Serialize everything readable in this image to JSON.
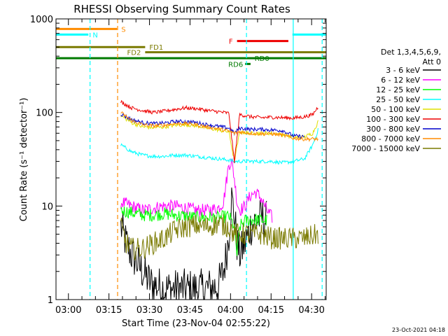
{
  "chart_data": {
    "type": "line",
    "title": "RHESSI Observing Summary Count Rates",
    "xlabel": "Start Time (23-Nov-04 02:55:22)",
    "ylabel": "Count Rate (s⁻¹ detector⁻¹)",
    "yscale": "log",
    "ylim": [
      1,
      1000
    ],
    "x_units": "minutes after 02:55:22",
    "xlim": [
      0,
      100
    ],
    "x_ticks": [
      {
        "label": "03:00",
        "value": 4.6
      },
      {
        "label": "03:15",
        "value": 19.6
      },
      {
        "label": "03:30",
        "value": 34.6
      },
      {
        "label": "03:45",
        "value": 49.6
      },
      {
        "label": "04:00",
        "value": 64.6
      },
      {
        "label": "04:15",
        "value": 79.6
      },
      {
        "label": "04:30",
        "value": 94.6
      }
    ],
    "y_ticks": [
      {
        "label": "1",
        "value": 1
      },
      {
        "label": "10",
        "value": 10
      },
      {
        "label": "100",
        "value": 100
      },
      {
        "label": "1000",
        "value": 1000
      }
    ],
    "legend": {
      "position": "right",
      "header": [
        "Det 1,3,4,5,6,9,",
        "Att 0"
      ],
      "entries": [
        {
          "label": "3 - 6 keV",
          "color": "#000000"
        },
        {
          "label": "6 - 12 keV",
          "color": "#ff00ff"
        },
        {
          "label": "12 - 25 keV",
          "color": "#00ff00"
        },
        {
          "label": "25 - 50 keV",
          "color": "#00ffff"
        },
        {
          "label": "50 - 100 keV",
          "color": "#e0e000"
        },
        {
          "label": "100 - 300 keV",
          "color": "#ee0000"
        },
        {
          "label": "300 - 800 keV",
          "color": "#0000cc"
        },
        {
          "label": "800 - 7000 keV",
          "color": "#ff8c00"
        },
        {
          "label": "7000 - 15000 keV",
          "color": "#7a7a00"
        }
      ]
    },
    "series": [
      {
        "name": "3 - 6 keV",
        "color": "#000000",
        "points": [
          [
            24,
            6
          ],
          [
            26,
            4
          ],
          [
            28,
            3
          ],
          [
            30,
            2.5
          ],
          [
            32,
            2
          ],
          [
            35,
            1.5
          ],
          [
            40,
            1.3
          ],
          [
            45,
            1.3
          ],
          [
            50,
            1.3
          ],
          [
            55,
            1.3
          ],
          [
            60,
            1.4
          ],
          [
            62,
            2
          ],
          [
            63,
            3
          ],
          [
            64,
            5
          ],
          [
            65,
            12
          ],
          [
            66,
            8
          ],
          [
            67,
            4
          ],
          [
            68,
            3
          ],
          [
            70,
            4
          ],
          [
            72,
            6
          ],
          [
            74,
            7
          ],
          [
            76,
            7.5
          ],
          [
            78,
            7
          ]
        ]
      },
      {
        "name": "6 - 12 keV",
        "color": "#ff00ff",
        "points": [
          [
            24,
            11
          ],
          [
            28,
            10
          ],
          [
            32,
            9
          ],
          [
            36,
            9.5
          ],
          [
            40,
            10
          ],
          [
            44,
            10
          ],
          [
            48,
            9.5
          ],
          [
            52,
            9
          ],
          [
            56,
            9
          ],
          [
            60,
            9.5
          ],
          [
            62,
            11
          ],
          [
            63,
            18
          ],
          [
            64,
            28
          ],
          [
            65,
            30
          ],
          [
            66,
            20
          ],
          [
            67,
            11
          ],
          [
            68,
            9
          ],
          [
            70,
            10
          ],
          [
            72,
            13
          ],
          [
            74,
            14
          ],
          [
            76,
            12
          ],
          [
            78,
            9
          ],
          [
            80,
            7.5
          ]
        ]
      },
      {
        "name": "12 - 25 keV",
        "color": "#00ff00",
        "points": [
          [
            24,
            9
          ],
          [
            28,
            8.5
          ],
          [
            32,
            8
          ],
          [
            36,
            8
          ],
          [
            40,
            8.3
          ],
          [
            44,
            8
          ],
          [
            48,
            7.8
          ],
          [
            52,
            7.5
          ],
          [
            56,
            7.6
          ],
          [
            60,
            7.5
          ],
          [
            64,
            7.8
          ],
          [
            66,
            6
          ],
          [
            67,
            3
          ],
          [
            68,
            6
          ],
          [
            70,
            7
          ],
          [
            74,
            7.2
          ],
          [
            78,
            7
          ]
        ]
      },
      {
        "name": "25 - 50 keV",
        "color": "#00ffff",
        "points": [
          [
            24,
            45
          ],
          [
            28,
            38
          ],
          [
            32,
            35
          ],
          [
            36,
            34
          ],
          [
            40,
            34
          ],
          [
            44,
            35
          ],
          [
            48,
            35
          ],
          [
            52,
            34
          ],
          [
            56,
            33
          ],
          [
            60,
            32
          ],
          [
            64,
            31
          ],
          [
            66,
            30
          ],
          [
            68,
            30
          ],
          [
            72,
            30
          ],
          [
            76,
            30
          ],
          [
            80,
            30
          ],
          [
            84,
            29
          ],
          [
            88,
            30
          ],
          [
            92,
            32
          ],
          [
            95,
            45
          ],
          [
            97,
            65
          ]
        ]
      },
      {
        "name": "50 - 100 keV",
        "color": "#e0e000",
        "points": [
          [
            24,
            92
          ],
          [
            28,
            78
          ],
          [
            32,
            70
          ],
          [
            36,
            69
          ],
          [
            40,
            70
          ],
          [
            44,
            73
          ],
          [
            48,
            74
          ],
          [
            52,
            72
          ],
          [
            56,
            68
          ],
          [
            60,
            65
          ],
          [
            64,
            62
          ],
          [
            66,
            30
          ],
          [
            68,
            62
          ],
          [
            72,
            60
          ],
          [
            76,
            60
          ],
          [
            80,
            60
          ],
          [
            84,
            58
          ],
          [
            88,
            54
          ],
          [
            92,
            55
          ],
          [
            95,
            60
          ],
          [
            97,
            80
          ]
        ]
      },
      {
        "name": "100 - 300 keV",
        "color": "#ee0000",
        "points": [
          [
            24,
            130
          ],
          [
            28,
            112
          ],
          [
            32,
            105
          ],
          [
            36,
            100
          ],
          [
            40,
            103
          ],
          [
            44,
            108
          ],
          [
            48,
            112
          ],
          [
            52,
            110
          ],
          [
            56,
            105
          ],
          [
            60,
            102
          ],
          [
            64,
            98
          ],
          [
            66,
            30
          ],
          [
            68,
            95
          ],
          [
            72,
            90
          ],
          [
            76,
            88
          ],
          [
            80,
            89
          ],
          [
            84,
            88
          ],
          [
            88,
            87
          ],
          [
            92,
            90
          ],
          [
            95,
            95
          ],
          [
            97,
            115
          ]
        ]
      },
      {
        "name": "300 - 800 keV",
        "color": "#0000cc",
        "points": [
          [
            24,
            96
          ],
          [
            28,
            84
          ],
          [
            32,
            78
          ],
          [
            36,
            76
          ],
          [
            40,
            77
          ],
          [
            44,
            80
          ],
          [
            48,
            80
          ],
          [
            52,
            78
          ],
          [
            56,
            74
          ],
          [
            60,
            71
          ],
          [
            64,
            68
          ],
          [
            66,
            60
          ],
          [
            68,
            68
          ],
          [
            72,
            66
          ],
          [
            76,
            66
          ],
          [
            80,
            65
          ],
          [
            84,
            64
          ],
          [
            88,
            56
          ],
          [
            92,
            55
          ]
        ]
      },
      {
        "name": "800 - 7000 keV",
        "color": "#ff8c00",
        "points": [
          [
            24,
            100
          ],
          [
            28,
            82
          ],
          [
            32,
            74
          ],
          [
            36,
            72
          ],
          [
            40,
            73
          ],
          [
            44,
            76
          ],
          [
            48,
            76
          ],
          [
            52,
            74
          ],
          [
            56,
            70
          ],
          [
            60,
            67
          ],
          [
            64,
            63
          ],
          [
            66,
            60
          ],
          [
            68,
            62
          ],
          [
            72,
            60
          ],
          [
            76,
            59
          ],
          [
            80,
            59
          ],
          [
            84,
            57
          ],
          [
            88,
            53
          ],
          [
            92,
            52
          ],
          [
            97,
            52
          ]
        ]
      },
      {
        "name": "7000 - 15000 keV",
        "color": "#7a7a00",
        "points": [
          [
            24,
            6
          ],
          [
            26,
            4
          ],
          [
            28,
            3.5
          ],
          [
            32,
            3.5
          ],
          [
            36,
            4
          ],
          [
            40,
            4.5
          ],
          [
            44,
            5.5
          ],
          [
            48,
            6
          ],
          [
            52,
            6.2
          ],
          [
            56,
            6
          ],
          [
            60,
            6.5
          ],
          [
            64,
            6
          ],
          [
            66,
            5
          ],
          [
            68,
            5
          ],
          [
            72,
            5
          ],
          [
            76,
            5
          ],
          [
            80,
            4.5
          ],
          [
            84,
            4.5
          ],
          [
            88,
            4.5
          ],
          [
            92,
            4.5
          ],
          [
            97,
            5
          ]
        ]
      }
    ],
    "flag_bars": [
      {
        "label": "S",
        "color": "#ff8c00",
        "x": [
          0,
          22.6
        ],
        "level": 780
      },
      {
        "label": "N",
        "color": "#00ffff",
        "x": [
          0,
          12
        ],
        "level": 680
      },
      {
        "label": "N",
        "color": "#00ffff",
        "x": [
          87.5,
          100
        ],
        "level": 680
      },
      {
        "label": "F",
        "color": "#ee0000",
        "x": [
          67,
          86
        ],
        "level": 580
      },
      {
        "label": "FD1",
        "color": "#7a7a00",
        "x": [
          0,
          33
        ],
        "level": 500
      },
      {
        "label": "FD2",
        "color": "#7a7a00",
        "x": [
          33,
          100
        ],
        "level": 440
      },
      {
        "label": "RD0",
        "color": "#007a00",
        "x": [
          0,
          100
        ],
        "level": 380
      },
      {
        "label": "RD6",
        "color": "#007a00",
        "x": [
          70,
          72
        ],
        "level": 330
      }
    ],
    "vertical_markers": [
      {
        "x": 12.6,
        "color": "#00ffff",
        "style": "dashed"
      },
      {
        "x": 22.8,
        "color": "#ff8c00",
        "style": "dashed"
      },
      {
        "x": 70.5,
        "color": "#00ffff",
        "style": "dashed"
      },
      {
        "x": 87.8,
        "color": "#00ffff",
        "style": "solid"
      },
      {
        "x": 98.5,
        "color": "#00ffff",
        "style": "dashed"
      }
    ]
  },
  "footer": {
    "timestamp": "23-Oct-2021 04:18"
  }
}
